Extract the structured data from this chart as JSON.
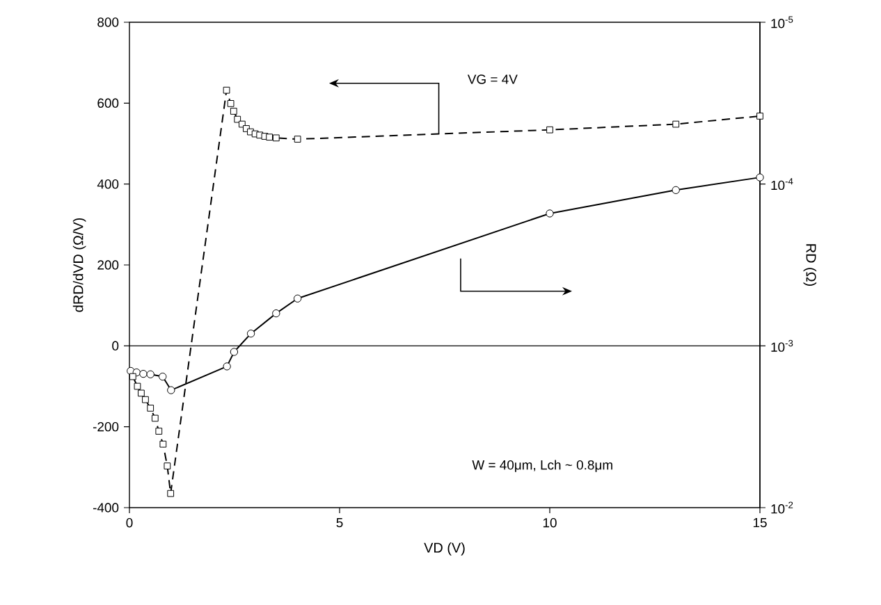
{
  "chart_data": {
    "type": "line",
    "xlabel": "VD (V)",
    "ylabel": "dRD/dVD (Ω/V)",
    "y2label": "RD (Ω)",
    "xlim": [
      0,
      15
    ],
    "xticks": [
      0,
      5,
      10,
      15
    ],
    "ylim": [
      -400,
      800
    ],
    "yticks": [
      -400,
      -200,
      0,
      200,
      400,
      600,
      800
    ],
    "y2lim": [
      0.01,
      1e-05
    ],
    "log": "y2",
    "y2ticks": [
      {
        "value": 0.01,
        "label": "10$^{-2}$"
      },
      {
        "value": 0.001,
        "label": "10$^{-3}$"
      },
      {
        "value": 0.0001,
        "label": "10$^{-4}$"
      },
      {
        "value": 1e-05,
        "label": "10$^{-5}$"
      }
    ],
    "series": [
      {
        "color": "#000000",
        "marker": "square",
        "line_style": "dashed",
        "x": [
          0.08,
          0.19,
          0.28,
          0.38,
          0.5,
          0.61,
          0.7,
          0.8,
          0.9,
          0.98,
          2.31,
          2.41,
          2.48,
          2.57,
          2.68,
          2.78,
          2.88,
          2.99,
          3.1,
          3.22,
          3.33,
          3.49,
          4.0,
          10.0,
          13.0,
          15.0
        ],
        "values": [
          -76,
          -100,
          -117,
          -133,
          -154,
          -179,
          -211,
          -243,
          -297,
          -365,
          632,
          599,
          580,
          560,
          548,
          537,
          529,
          524,
          521,
          518,
          516,
          514,
          511,
          534,
          548,
          568
        ]
      },
      {
        "color": "#000000",
        "marker": "circle",
        "line_style": "solid",
        "axis": "y2",
        "x": [
          0.03,
          0.17,
          0.33,
          0.5,
          0.79,
          0.99,
          2.32,
          2.49,
          2.89,
          3.49,
          4.0,
          10.0,
          13.0,
          15.0
        ],
        "values": [
          0.00143,
          0.00146,
          0.00149,
          0.0015,
          0.00155,
          0.00188,
          0.00134,
          0.00109,
          0.00084,
          0.00063,
          0.00051,
          0.000152,
          0.000109,
          9.1e-05
        ]
      }
    ],
    "ref_lines": [
      {
        "axis": "y",
        "value": 0,
        "label": null,
        "color": "#000000"
      }
    ],
    "annotations": [
      "VG = 4V",
      "W = 40μm, Lch ~ 0.8μm"
    ]
  }
}
